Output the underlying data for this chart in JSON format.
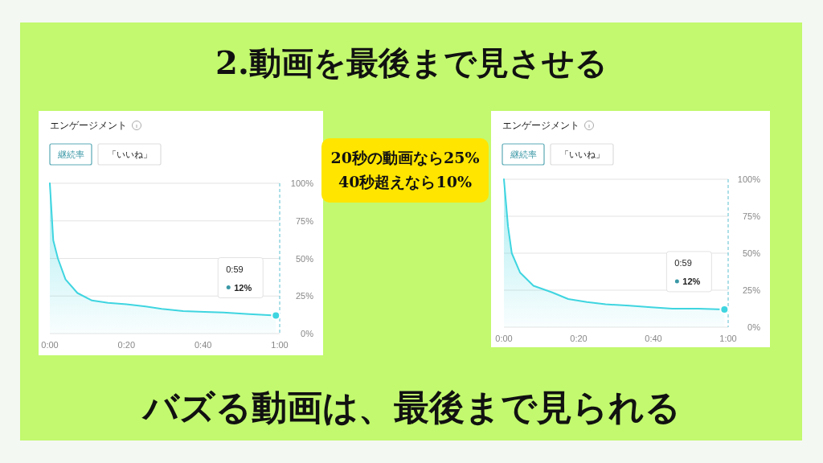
{
  "chart_data": [
    {
      "type": "other",
      "title": "2.動画を最後まで見させる",
      "annotations": [
        "20秒の動画なら25%",
        "40秒超えなら10%",
        "バズる動画は、最後まで見られる"
      ]
    },
    {
      "type": "area",
      "title": "エンゲージメント",
      "annotations": [
        "継続率",
        "「いいね」",
        "0:59",
        "12%"
      ],
      "x": [
        0,
        0.9,
        2.1,
        4.1,
        7.2,
        11,
        15.2,
        20,
        25,
        29.2,
        34.8,
        40.4,
        45.3,
        52,
        59
      ],
      "values": [
        100,
        62,
        50,
        36,
        27,
        22,
        20.5,
        19.5,
        18,
        16.5,
        15,
        14.5,
        14,
        13,
        12
      ],
      "color": "#3fd5e0",
      "xlim": [
        0,
        60
      ],
      "xticks": [
        {
          "value": 0,
          "label": "0:00"
        },
        {
          "value": 20,
          "label": "0:20"
        },
        {
          "value": 40,
          "label": "0:40"
        },
        {
          "value": 60,
          "label": "1:00"
        }
      ],
      "ylim": [
        0,
        100
      ],
      "yticks": [
        {
          "value": 0,
          "label": "0%"
        },
        {
          "value": 25,
          "label": "25%"
        },
        {
          "value": 50,
          "label": "50%"
        },
        {
          "value": 75,
          "label": "75%"
        },
        {
          "value": 100,
          "label": "100%"
        }
      ],
      "grid": "y",
      "legend": false,
      "ref_lines": [
        {
          "axis": "x",
          "value": 60,
          "line_style": "dashed",
          "color": "#5bbfd0"
        }
      ]
    },
    {
      "type": "area",
      "title": "エンゲージメント",
      "annotations": [
        "継続率",
        "「いいね」",
        "0:59",
        "12%"
      ],
      "x": [
        0,
        1.1,
        2.1,
        4.3,
        7.9,
        12.9,
        17.2,
        22.2,
        27.2,
        33.6,
        39.4,
        45.1,
        52,
        59
      ],
      "values": [
        100,
        68,
        50,
        37,
        28,
        23.5,
        19,
        17,
        15.5,
        14.5,
        13.5,
        12.5,
        12.5,
        12
      ],
      "color": "#3fd5e0",
      "xlim": [
        0,
        60
      ],
      "xticks": [
        {
          "value": 0,
          "label": "0:00"
        },
        {
          "value": 20,
          "label": "0:20"
        },
        {
          "value": 40,
          "label": "0:40"
        },
        {
          "value": 60,
          "label": "1:00"
        }
      ],
      "ylim": [
        0,
        100
      ],
      "yticks": [
        {
          "value": 0,
          "label": "0%"
        },
        {
          "value": 25,
          "label": "25%"
        },
        {
          "value": 50,
          "label": "50%"
        },
        {
          "value": 75,
          "label": "75%"
        },
        {
          "value": 100,
          "label": "100%"
        }
      ],
      "grid": "y",
      "legend": false,
      "ref_lines": [
        {
          "axis": "x",
          "value": 60,
          "line_style": "dashed",
          "color": "#5bbfd0"
        }
      ]
    }
  ]
}
